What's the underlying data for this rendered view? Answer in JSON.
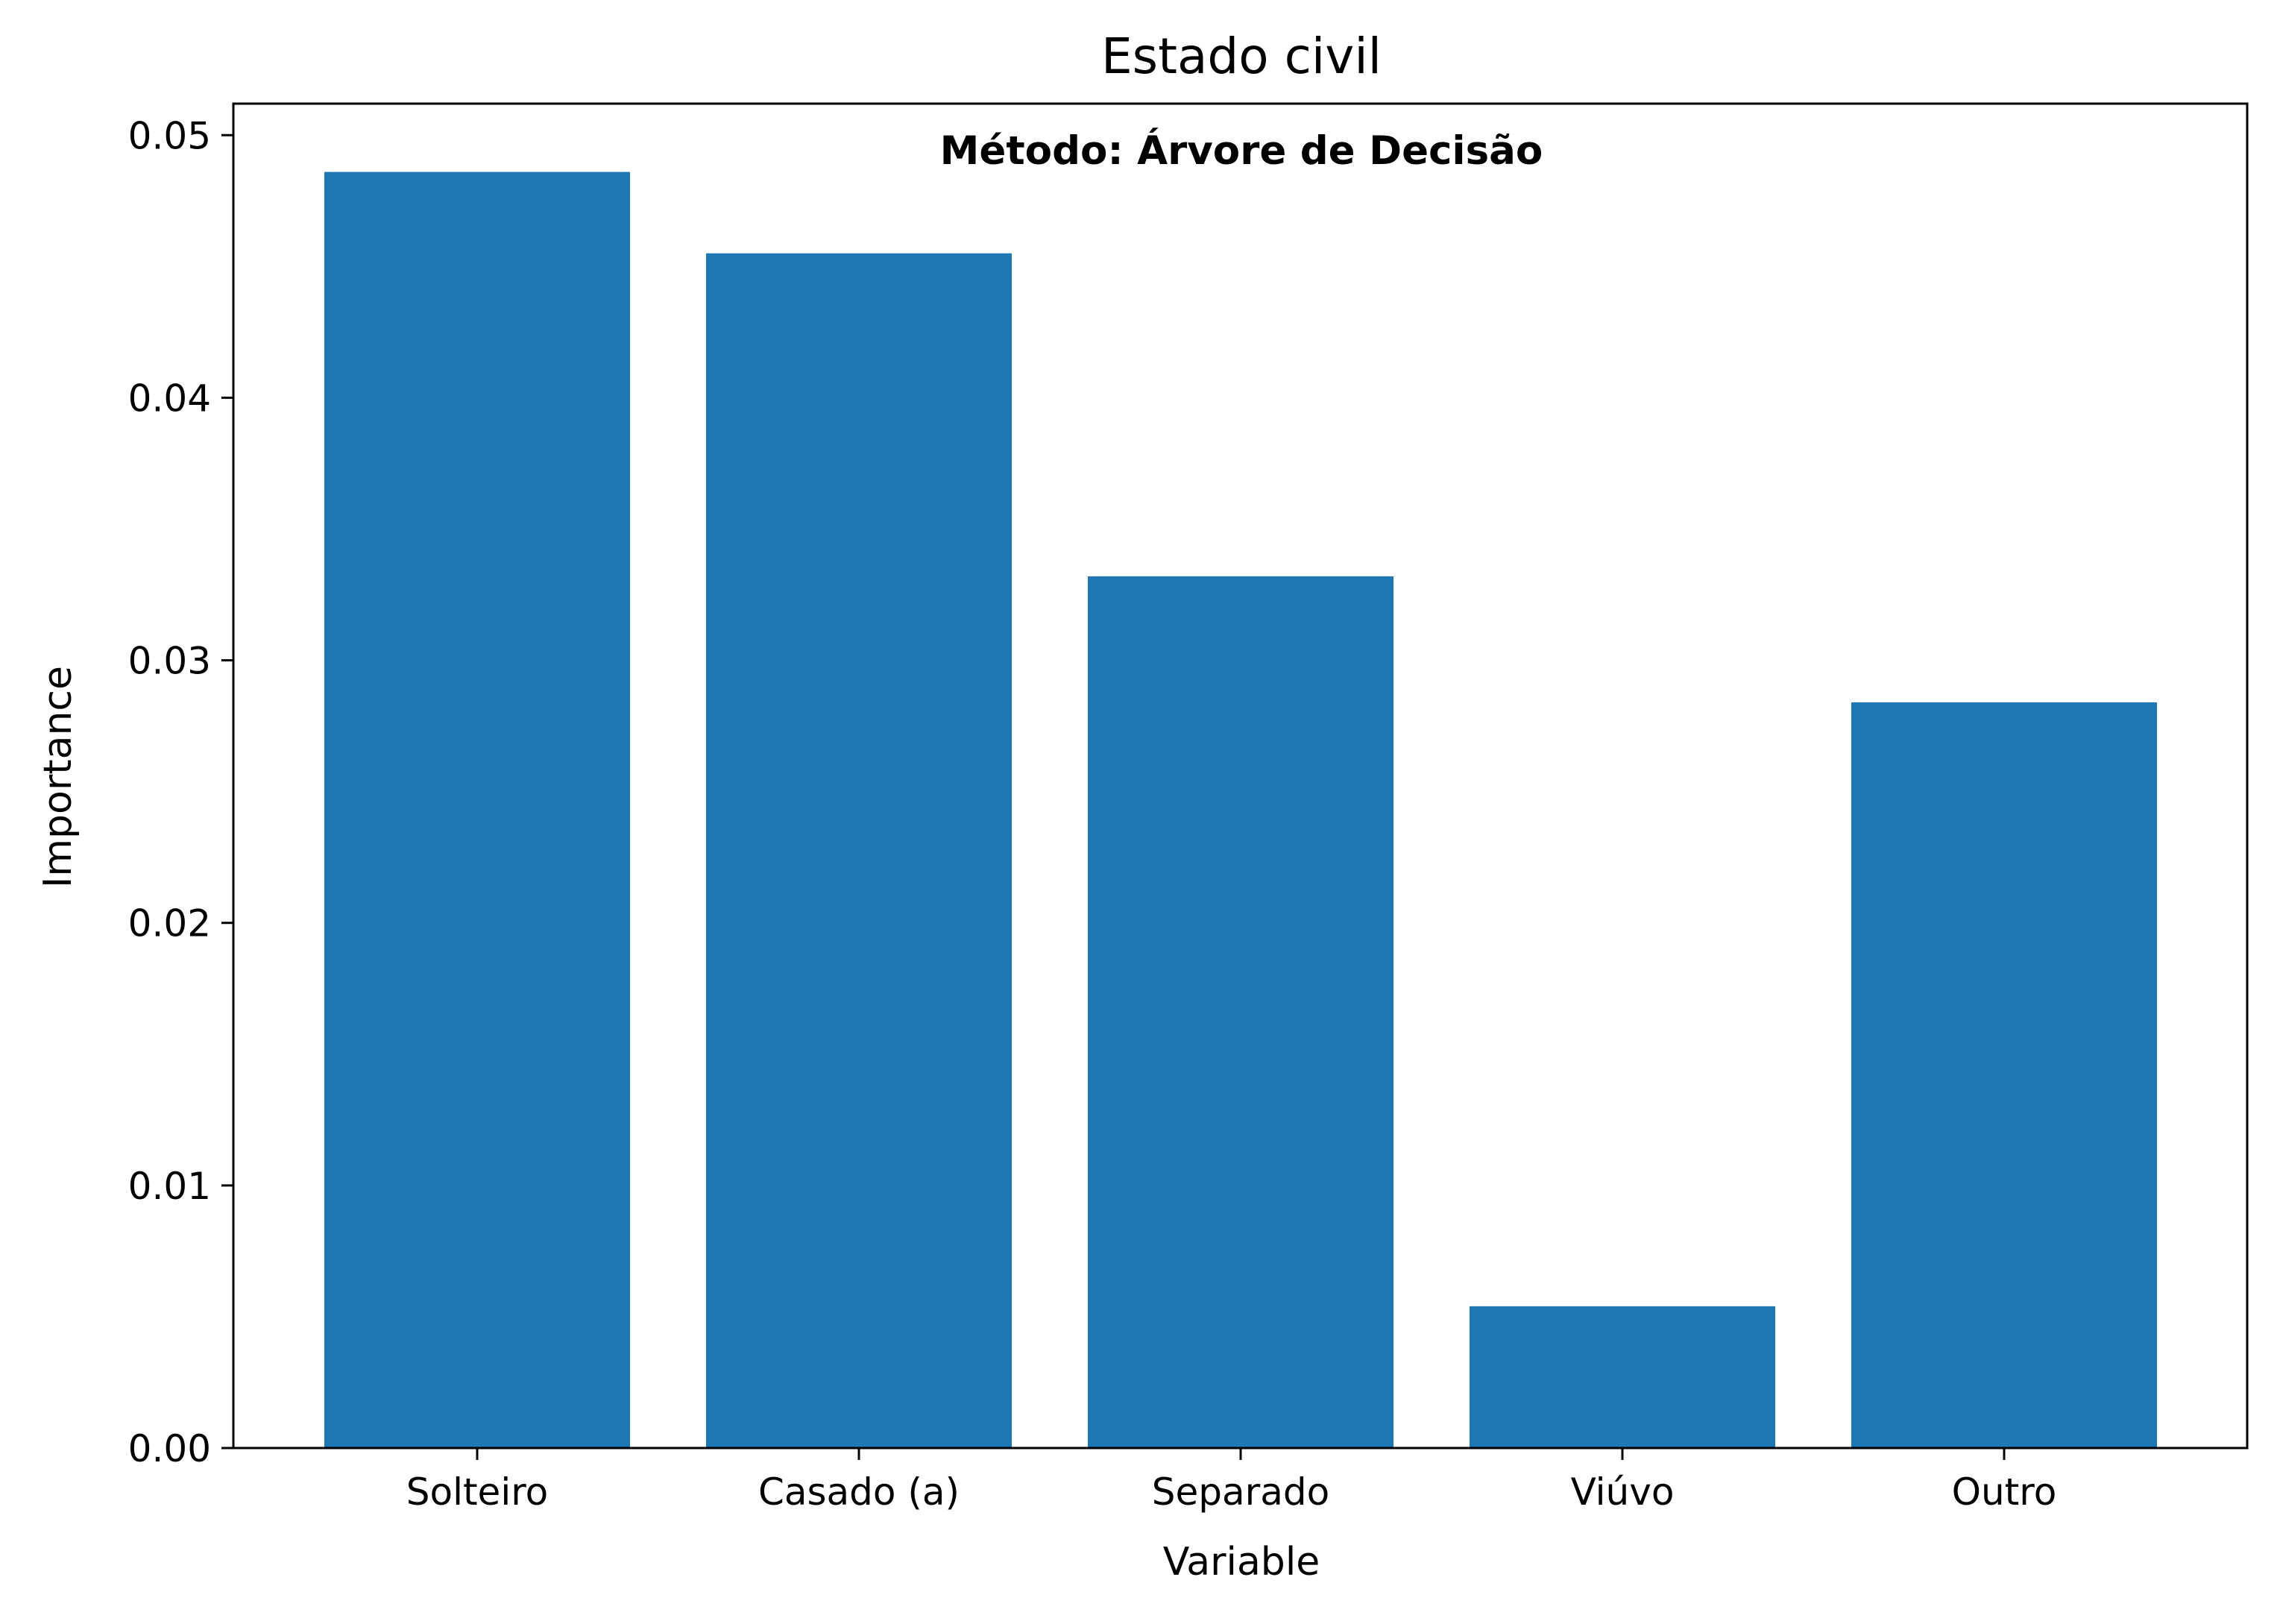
{
  "chart_data": {
    "type": "bar",
    "title": "Estado civil",
    "annotation": "Método: Árvore de Decisão",
    "xlabel": "Variable",
    "ylabel": "Importance",
    "categories": [
      "Solteiro",
      "Casado (a)",
      "Separado",
      "Viúvo",
      "Outro"
    ],
    "values": [
      0.0486,
      0.0455,
      0.0332,
      0.0054,
      0.0284
    ],
    "ylim": [
      0,
      0.0512
    ],
    "yticks": [
      0.0,
      0.01,
      0.02,
      0.03,
      0.04,
      0.05
    ],
    "ytick_labels": [
      "0.00",
      "0.01",
      "0.02",
      "0.03",
      "0.04",
      "0.05"
    ],
    "bar_color": "#1f77b4",
    "grid": false,
    "legend": "none"
  }
}
